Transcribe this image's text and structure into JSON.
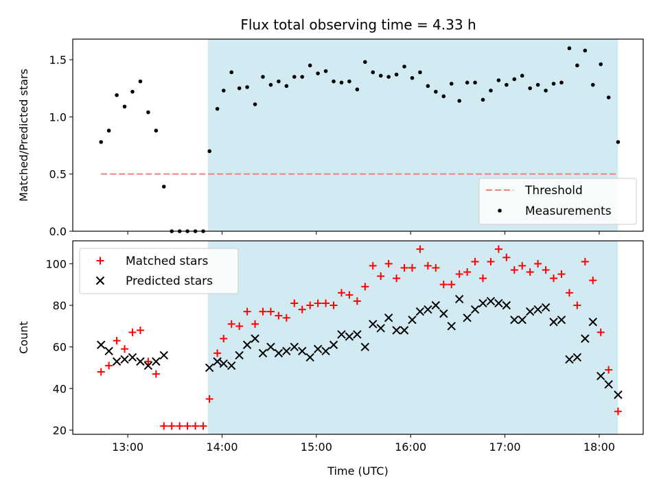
{
  "title": "Flux total observing time = 4.33 h",
  "colors": {
    "shade": "#add8e6",
    "threshold": "#f08080",
    "measurement": "#000000",
    "matched": "#ff0000",
    "predicted": "#000000"
  },
  "chart_data": [
    {
      "type": "scatter",
      "panel": "top",
      "ylabel": "Matched/Predicted stars",
      "xlim": [
        "12:25",
        "18:28"
      ],
      "ylim": [
        0,
        1.68
      ],
      "yticks": [
        "0.0",
        "0.5",
        "1.0",
        "1.5"
      ],
      "shaded_interval": [
        "13:51",
        "18:12"
      ],
      "legend": {
        "placement": "lower-right",
        "entries": [
          "Threshold",
          "Measurements"
        ]
      },
      "threshold": {
        "name": "Threshold",
        "y": 0.5,
        "x": [
          "12:43",
          "18:12"
        ]
      },
      "series": [
        {
          "name": "Measurements",
          "x": [
            "12:43",
            "12:48",
            "12:53",
            "12:58",
            "13:03",
            "13:08",
            "13:13",
            "13:18",
            "13:23",
            "13:28",
            "13:33",
            "13:38",
            "13:43",
            "13:48",
            "13:52",
            "13:57",
            "14:01",
            "14:06",
            "14:11",
            "14:16",
            "14:21",
            "14:26",
            "14:31",
            "14:36",
            "14:41",
            "14:46",
            "14:51",
            "14:56",
            "15:01",
            "15:06",
            "15:11",
            "15:16",
            "15:21",
            "15:26",
            "15:31",
            "15:36",
            "15:41",
            "15:46",
            "15:51",
            "15:56",
            "16:01",
            "16:06",
            "16:11",
            "16:16",
            "16:21",
            "16:26",
            "16:31",
            "16:36",
            "16:41",
            "16:46",
            "16:51",
            "16:56",
            "17:01",
            "17:06",
            "17:11",
            "17:16",
            "17:21",
            "17:26",
            "17:31",
            "17:36",
            "17:41",
            "17:46",
            "17:51",
            "17:56",
            "18:01",
            "18:06",
            "18:12"
          ],
          "y": [
            0.78,
            0.88,
            1.19,
            1.09,
            1.22,
            1.31,
            1.04,
            0.88,
            0.39,
            0.0,
            0.0,
            0.0,
            0.0,
            0.0,
            0.7,
            1.07,
            1.23,
            1.39,
            1.25,
            1.26,
            1.11,
            1.35,
            1.28,
            1.31,
            1.27,
            1.35,
            1.35,
            1.45,
            1.38,
            1.4,
            1.31,
            1.3,
            1.31,
            1.24,
            1.48,
            1.39,
            1.36,
            1.35,
            1.37,
            1.44,
            1.34,
            1.39,
            1.27,
            1.22,
            1.18,
            1.29,
            1.14,
            1.3,
            1.3,
            1.15,
            1.23,
            1.32,
            1.28,
            1.33,
            1.36,
            1.25,
            1.28,
            1.23,
            1.29,
            1.3,
            1.6,
            1.45,
            1.58,
            1.28,
            1.46,
            1.17,
            0.78
          ]
        }
      ]
    },
    {
      "type": "scatter",
      "panel": "bottom",
      "xlabel": "Time (UTC)",
      "ylabel": "Count",
      "xlim": [
        "12:25",
        "18:28"
      ],
      "ylim": [
        18,
        111
      ],
      "xticks": [
        "13:00",
        "14:00",
        "15:00",
        "16:00",
        "17:00",
        "18:00"
      ],
      "yticks": [
        "20",
        "40",
        "60",
        "80",
        "100"
      ],
      "shaded_interval": [
        "13:51",
        "18:12"
      ],
      "legend": {
        "placement": "upper-left",
        "entries": [
          "Matched stars",
          "Predicted stars"
        ]
      },
      "series": [
        {
          "name": "Matched stars",
          "marker": "plus",
          "x": [
            "12:43",
            "12:48",
            "12:53",
            "12:58",
            "13:03",
            "13:08",
            "13:13",
            "13:18",
            "13:23",
            "13:28",
            "13:33",
            "13:38",
            "13:43",
            "13:48",
            "13:52",
            "13:57",
            "14:01",
            "14:06",
            "14:11",
            "14:16",
            "14:21",
            "14:26",
            "14:31",
            "14:36",
            "14:41",
            "14:46",
            "14:51",
            "14:56",
            "15:01",
            "15:06",
            "15:11",
            "15:16",
            "15:21",
            "15:26",
            "15:31",
            "15:36",
            "15:41",
            "15:46",
            "15:51",
            "15:56",
            "16:01",
            "16:06",
            "16:11",
            "16:16",
            "16:21",
            "16:26",
            "16:31",
            "16:36",
            "16:41",
            "16:46",
            "16:51",
            "16:56",
            "17:01",
            "17:06",
            "17:11",
            "17:16",
            "17:21",
            "17:26",
            "17:31",
            "17:36",
            "17:41",
            "17:46",
            "17:51",
            "17:56",
            "18:01",
            "18:06",
            "18:12"
          ],
          "y": [
            48,
            51,
            63,
            59,
            67,
            68,
            53,
            47,
            22,
            22,
            22,
            22,
            22,
            22,
            35,
            57,
            64,
            71,
            70,
            77,
            71,
            77,
            77,
            75,
            74,
            81,
            78,
            80,
            81,
            81,
            80,
            86,
            85,
            82,
            89,
            99,
            94,
            100,
            93,
            98,
            98,
            107,
            99,
            98,
            90,
            90,
            95,
            96,
            101,
            93,
            101,
            107,
            103,
            97,
            99,
            96,
            100,
            97,
            93,
            95,
            86,
            80,
            101,
            92,
            67,
            49,
            29
          ]
        },
        {
          "name": "Predicted stars",
          "marker": "x",
          "x": [
            "12:43",
            "12:48",
            "12:53",
            "12:58",
            "13:03",
            "13:08",
            "13:13",
            "13:18",
            "13:23",
            "13:52",
            "13:57",
            "14:01",
            "14:06",
            "14:11",
            "14:16",
            "14:21",
            "14:26",
            "14:31",
            "14:36",
            "14:41",
            "14:46",
            "14:51",
            "14:56",
            "15:01",
            "15:06",
            "15:11",
            "15:16",
            "15:21",
            "15:26",
            "15:31",
            "15:36",
            "15:41",
            "15:46",
            "15:51",
            "15:56",
            "16:01",
            "16:06",
            "16:11",
            "16:16",
            "16:21",
            "16:26",
            "16:31",
            "16:36",
            "16:41",
            "16:46",
            "16:51",
            "16:56",
            "17:01",
            "17:06",
            "17:11",
            "17:16",
            "17:21",
            "17:26",
            "17:31",
            "17:36",
            "17:41",
            "17:46",
            "17:51",
            "17:56",
            "18:01",
            "18:06",
            "18:12"
          ],
          "y": [
            61,
            58,
            53,
            54,
            55,
            53,
            51,
            53,
            56,
            50,
            53,
            52,
            51,
            56,
            61,
            64,
            57,
            60,
            57,
            58,
            60,
            58,
            55,
            59,
            58,
            61,
            66,
            65,
            66,
            60,
            71,
            69,
            74,
            68,
            68,
            73,
            77,
            78,
            80,
            76,
            70,
            83,
            74,
            78,
            81,
            82,
            81,
            80,
            73,
            73,
            77,
            78,
            79,
            72,
            73,
            54,
            55,
            64,
            72,
            46,
            42,
            37
          ]
        }
      ]
    }
  ]
}
